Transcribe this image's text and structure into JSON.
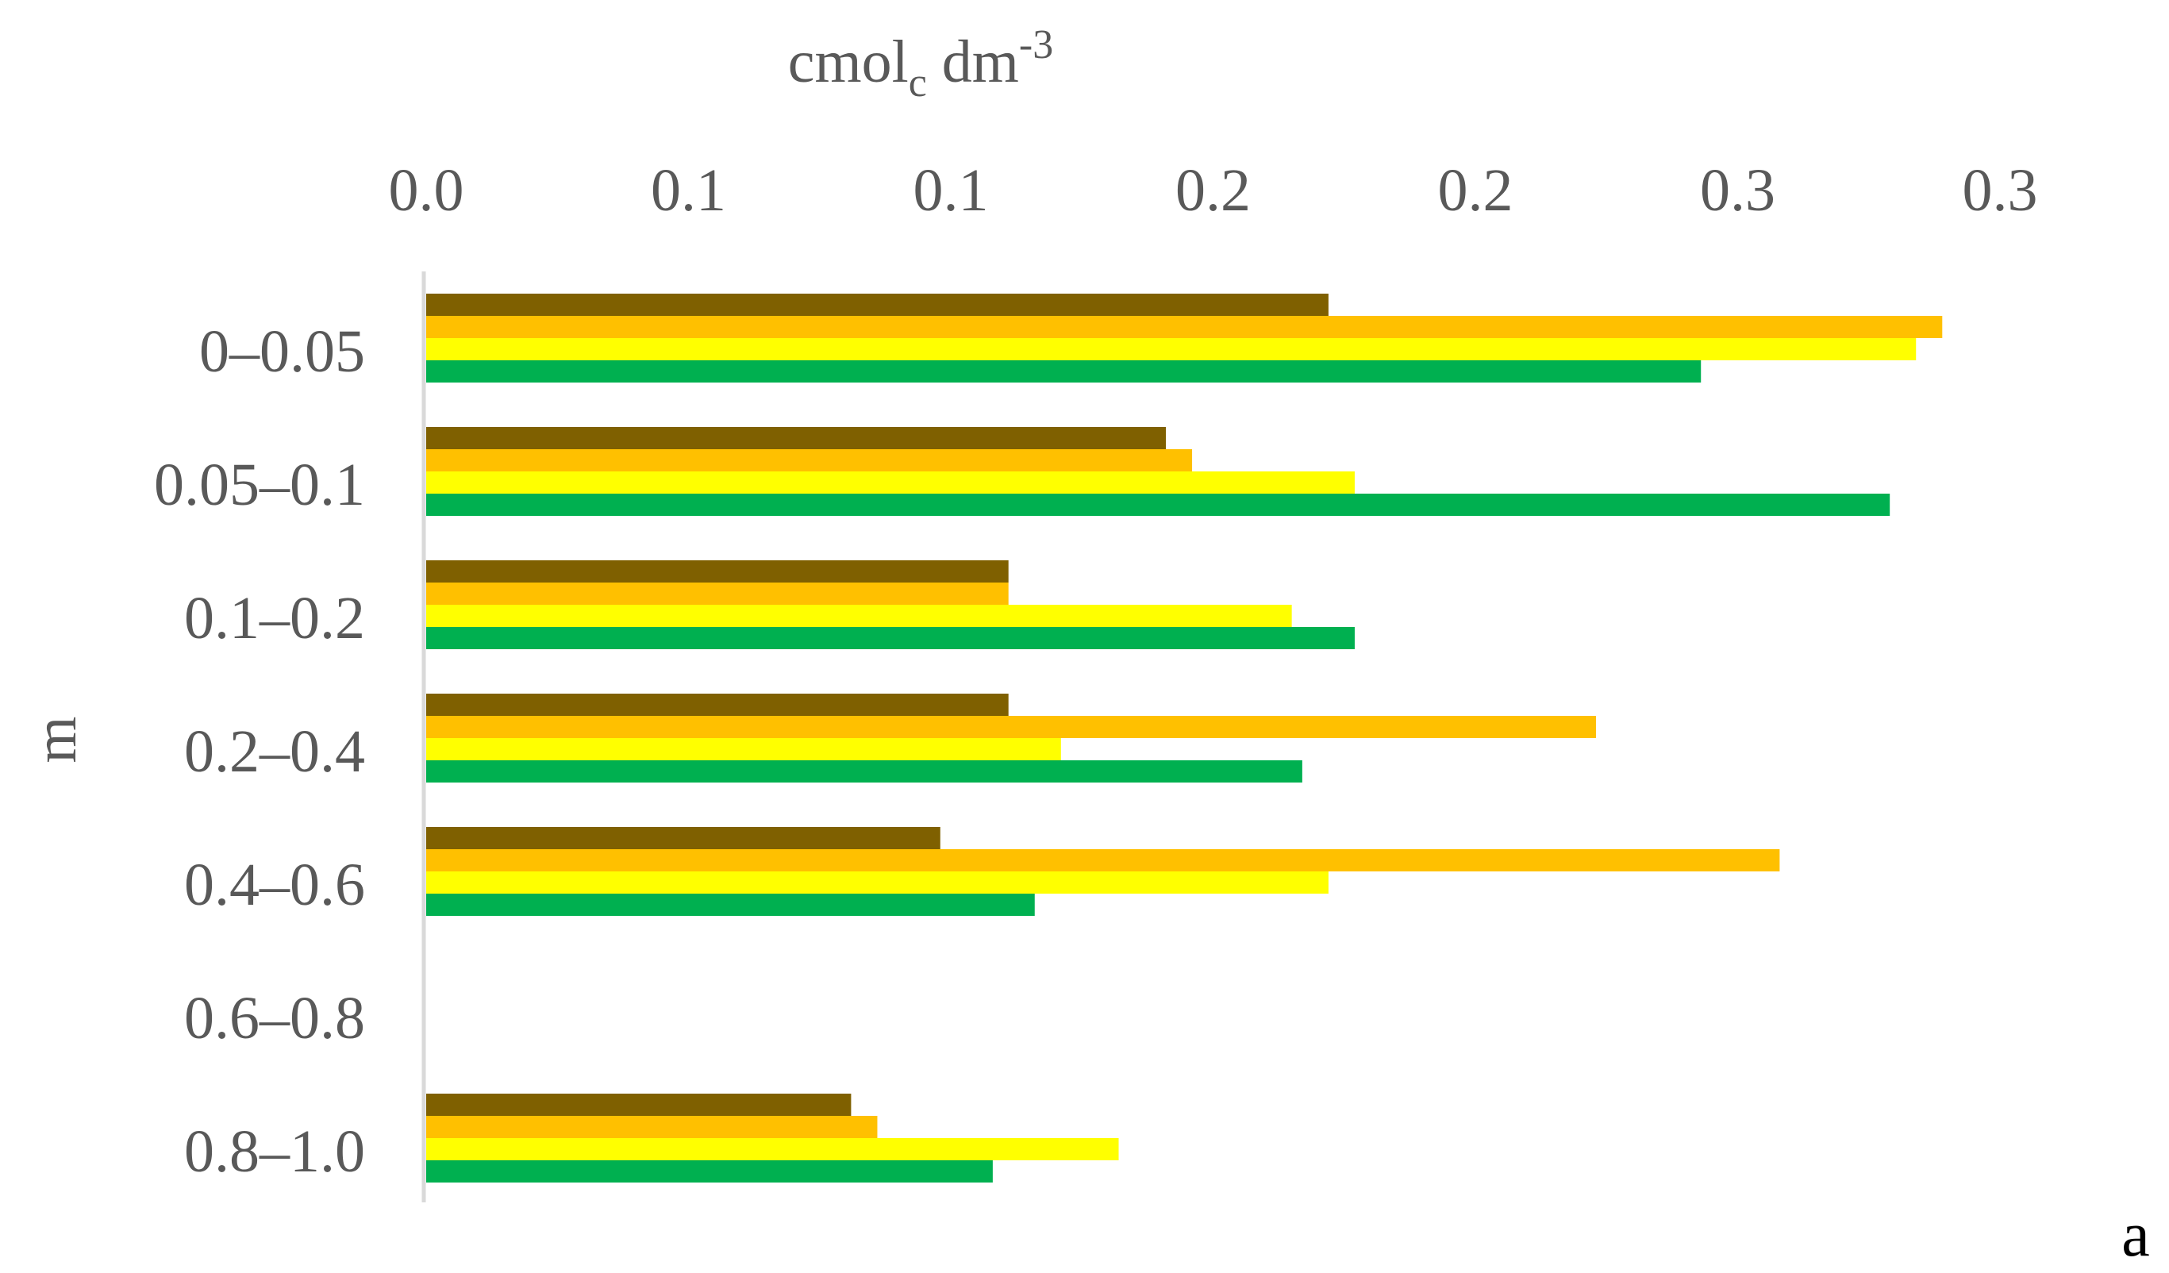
{
  "chart_data": {
    "type": "bar",
    "orientation": "horizontal",
    "xlabel": {
      "main": "cmol",
      "sub": "c",
      "rest": " dm",
      "sup": "-3"
    },
    "ylabel": "m",
    "xlim": [
      0,
      0.3
    ],
    "x_tick_labels": [
      "0.0",
      "0.1",
      "0.1",
      "0.2",
      "0.2",
      "0.3",
      "0.3"
    ],
    "categories": [
      "0–0.05",
      "0.05–0.1",
      "0.1–0.2",
      "0.2–0.4",
      "0.4–0.6",
      "0.6–0.8",
      "0.8–1.0"
    ],
    "series": [
      {
        "color": "#7f6000",
        "values": [
          0.172,
          0.141,
          0.111,
          0.111,
          0.098,
          null,
          0.081
        ]
      },
      {
        "color": "#ffc000",
        "values": [
          0.289,
          0.146,
          0.111,
          0.223,
          0.258,
          null,
          0.086
        ]
      },
      {
        "color": "#ffff00",
        "values": [
          0.284,
          0.177,
          0.165,
          0.121,
          0.172,
          null,
          0.132
        ]
      },
      {
        "color": "#00b050",
        "values": [
          0.243,
          0.279,
          0.177,
          0.167,
          0.116,
          null,
          0.108
        ]
      }
    ],
    "axis_position": "top",
    "legend": "none",
    "grid": false,
    "panel_label": "a"
  }
}
